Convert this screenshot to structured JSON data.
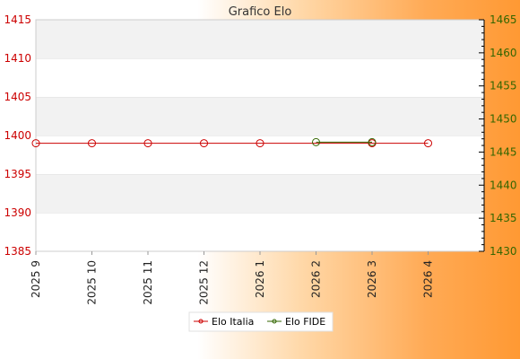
{
  "chart_data": {
    "type": "line",
    "title": "Grafico Elo",
    "categories": [
      "2025 9",
      "2025 10",
      "2025 11",
      "2025 12",
      "2026 1",
      "2026 2",
      "2026 3",
      "2026 4"
    ],
    "y_left": {
      "range": [
        1385,
        1415
      ],
      "ticks": [
        1385,
        1390,
        1395,
        1400,
        1405,
        1410,
        1415
      ],
      "color": "#cc0000"
    },
    "y_right": {
      "range": [
        1430,
        1465
      ],
      "ticks": [
        1430,
        1435,
        1440,
        1445,
        1450,
        1455,
        1460,
        1465
      ],
      "color": "#336600"
    },
    "grid": true,
    "legend_position": "bottom",
    "series": [
      {
        "name": "Elo Italia",
        "axis": "left",
        "color": "#cc0000",
        "points": [
          {
            "x": "2025 9",
            "y": 1399
          },
          {
            "x": "2025 10",
            "y": 1399
          },
          {
            "x": "2025 11",
            "y": 1399
          },
          {
            "x": "2025 12",
            "y": 1399
          },
          {
            "x": "2026 1",
            "y": 1399
          },
          {
            "x": "2026 3",
            "y": 1399
          },
          {
            "x": "2026 4",
            "y": 1399
          }
        ]
      },
      {
        "name": "Elo FIDE",
        "axis": "right",
        "color": "#336600",
        "points": [
          {
            "x": "2026 2",
            "y": 1446.5
          },
          {
            "x": "2026 3",
            "y": 1446.5
          }
        ]
      }
    ]
  }
}
